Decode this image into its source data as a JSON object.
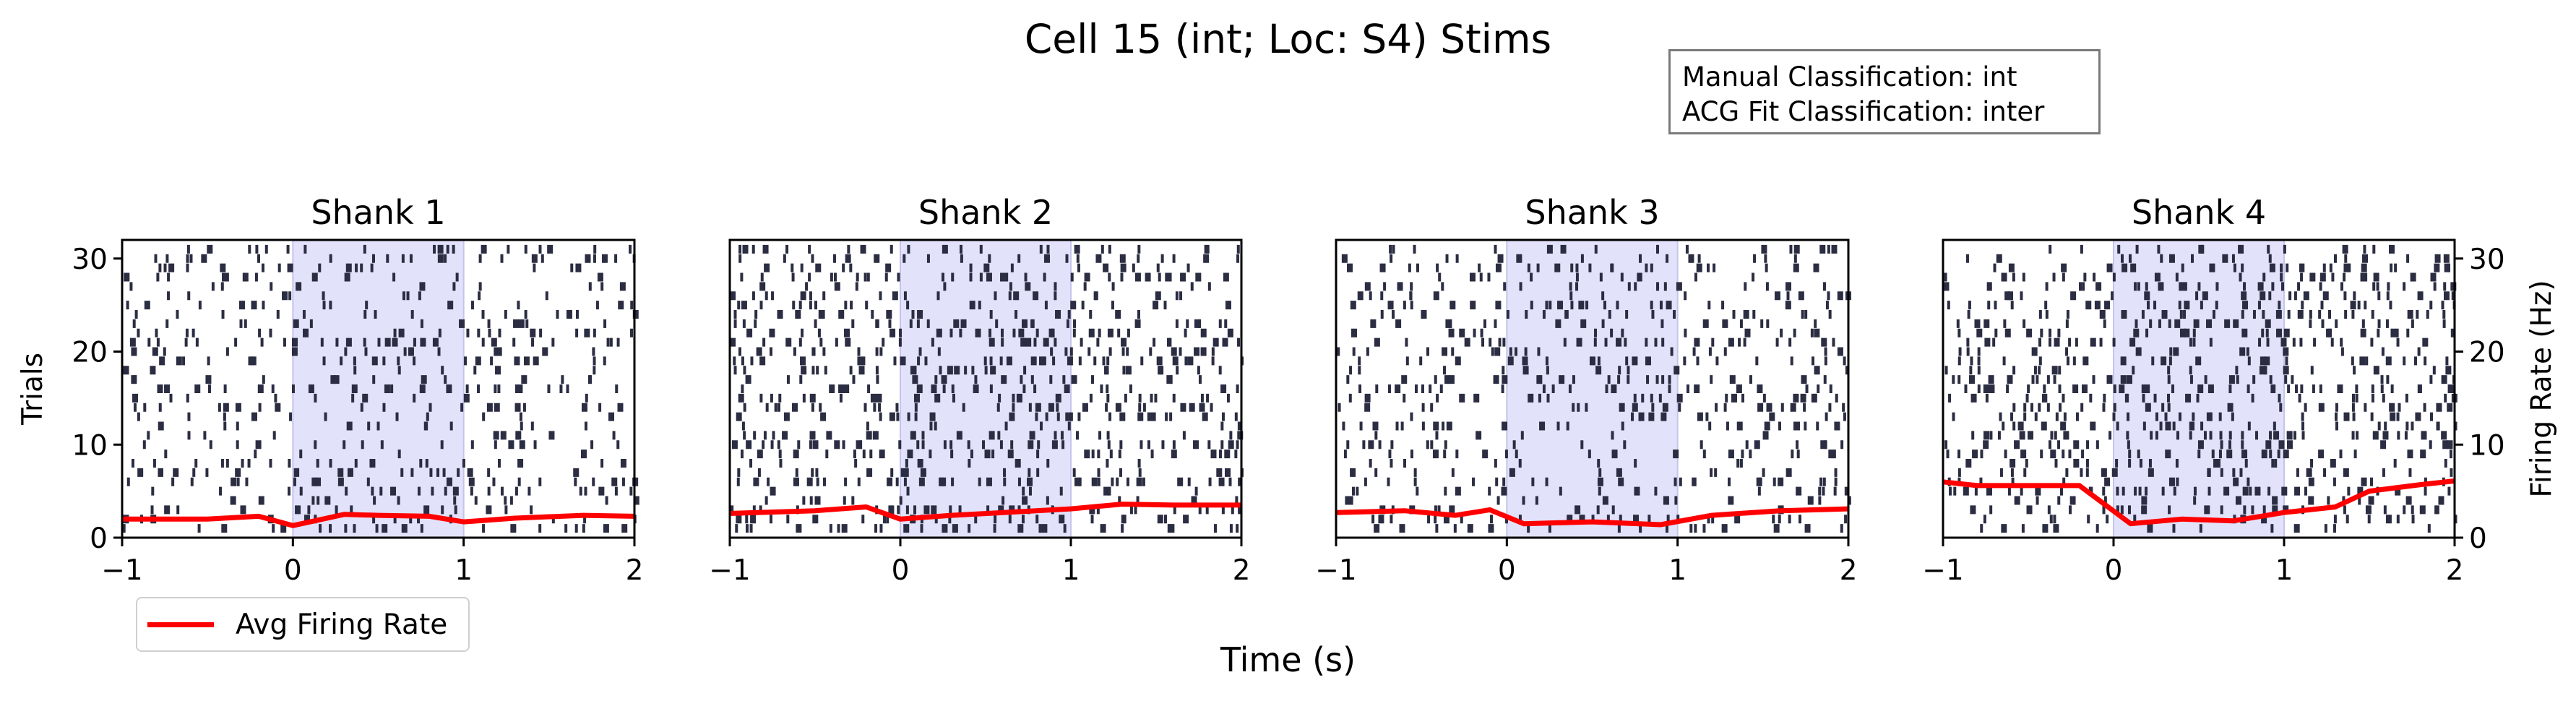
{
  "figure": {
    "title": "Cell 15 (int; Loc: S4) Stims",
    "info_box": {
      "line1": "Manual Classification: int",
      "line2": "ACG Fit Classification: inter"
    },
    "legend_label": "Avg Firing Rate",
    "xlabel": "Time (s)",
    "ylabel_left": "Trials",
    "ylabel_right": "Firing Rate (Hz)"
  },
  "colors": {
    "spike": "#2b2d42",
    "rate_line": "#ff0000",
    "stim_shade": "#e2e2fb",
    "stim_edge": "#c4c4ee"
  },
  "chart_data": [
    {
      "type": "line",
      "title": "Shank 1",
      "xlim": [
        -1,
        2
      ],
      "ylim_trials": [
        0,
        32
      ],
      "ylim_rate": [
        0,
        32
      ],
      "xticks": [
        "−1",
        "0",
        "1",
        "2"
      ],
      "yticks": [
        "0",
        "10",
        "20",
        "30"
      ],
      "stim_window": [
        0,
        1
      ],
      "spike_density": 0.55,
      "series": [
        {
          "name": "Avg Firing Rate",
          "x": [
            -1.0,
            -0.5,
            -0.2,
            0.0,
            0.3,
            0.5,
            0.8,
            1.0,
            1.3,
            1.7,
            2.0
          ],
          "y": [
            2.0,
            2.0,
            2.3,
            1.3,
            2.5,
            2.4,
            2.3,
            1.7,
            2.1,
            2.4,
            2.3
          ]
        }
      ]
    },
    {
      "type": "line",
      "title": "Shank 2",
      "xlim": [
        -1,
        2
      ],
      "ylim_trials": [
        0,
        32
      ],
      "ylim_rate": [
        0,
        32
      ],
      "xticks": [
        "−1",
        "0",
        "1",
        "2"
      ],
      "yticks": [],
      "stim_window": [
        0,
        1
      ],
      "spike_density": 0.75,
      "series": [
        {
          "name": "Avg Firing Rate",
          "x": [
            -1.0,
            -0.5,
            -0.2,
            0.0,
            0.3,
            0.7,
            1.0,
            1.3,
            1.6,
            2.0
          ],
          "y": [
            2.6,
            2.9,
            3.3,
            2.0,
            2.4,
            2.8,
            3.1,
            3.6,
            3.5,
            3.5
          ]
        }
      ]
    },
    {
      "type": "line",
      "title": "Shank 3",
      "xlim": [
        -1,
        2
      ],
      "ylim_trials": [
        0,
        32
      ],
      "ylim_rate": [
        0,
        32
      ],
      "xticks": [
        "−1",
        "0",
        "1",
        "2"
      ],
      "yticks": [],
      "stim_window": [
        0,
        1
      ],
      "spike_density": 0.6,
      "series": [
        {
          "name": "Avg Firing Rate",
          "x": [
            -1.0,
            -0.6,
            -0.3,
            -0.1,
            0.1,
            0.5,
            0.9,
            1.2,
            1.6,
            2.0
          ],
          "y": [
            2.7,
            2.9,
            2.4,
            3.0,
            1.5,
            1.7,
            1.4,
            2.4,
            2.9,
            3.1
          ]
        }
      ]
    },
    {
      "type": "line",
      "title": "Shank 4",
      "xlim": [
        -1,
        2
      ],
      "ylim_trials": [
        0,
        32
      ],
      "ylim_rate": [
        0,
        32
      ],
      "xticks": [
        "−1",
        "0",
        "1",
        "2"
      ],
      "yticks": [
        "0",
        "10",
        "20",
        "30"
      ],
      "stim_window": [
        0,
        1
      ],
      "spike_density": 0.8,
      "series": [
        {
          "name": "Avg Firing Rate",
          "x": [
            -1.0,
            -0.8,
            -0.5,
            -0.2,
            0.1,
            0.4,
            0.7,
            1.0,
            1.3,
            1.5,
            1.8,
            2.0
          ],
          "y": [
            6.0,
            5.6,
            5.6,
            5.6,
            1.5,
            2.0,
            1.8,
            2.7,
            3.3,
            5.0,
            5.7,
            6.1
          ]
        }
      ]
    }
  ]
}
